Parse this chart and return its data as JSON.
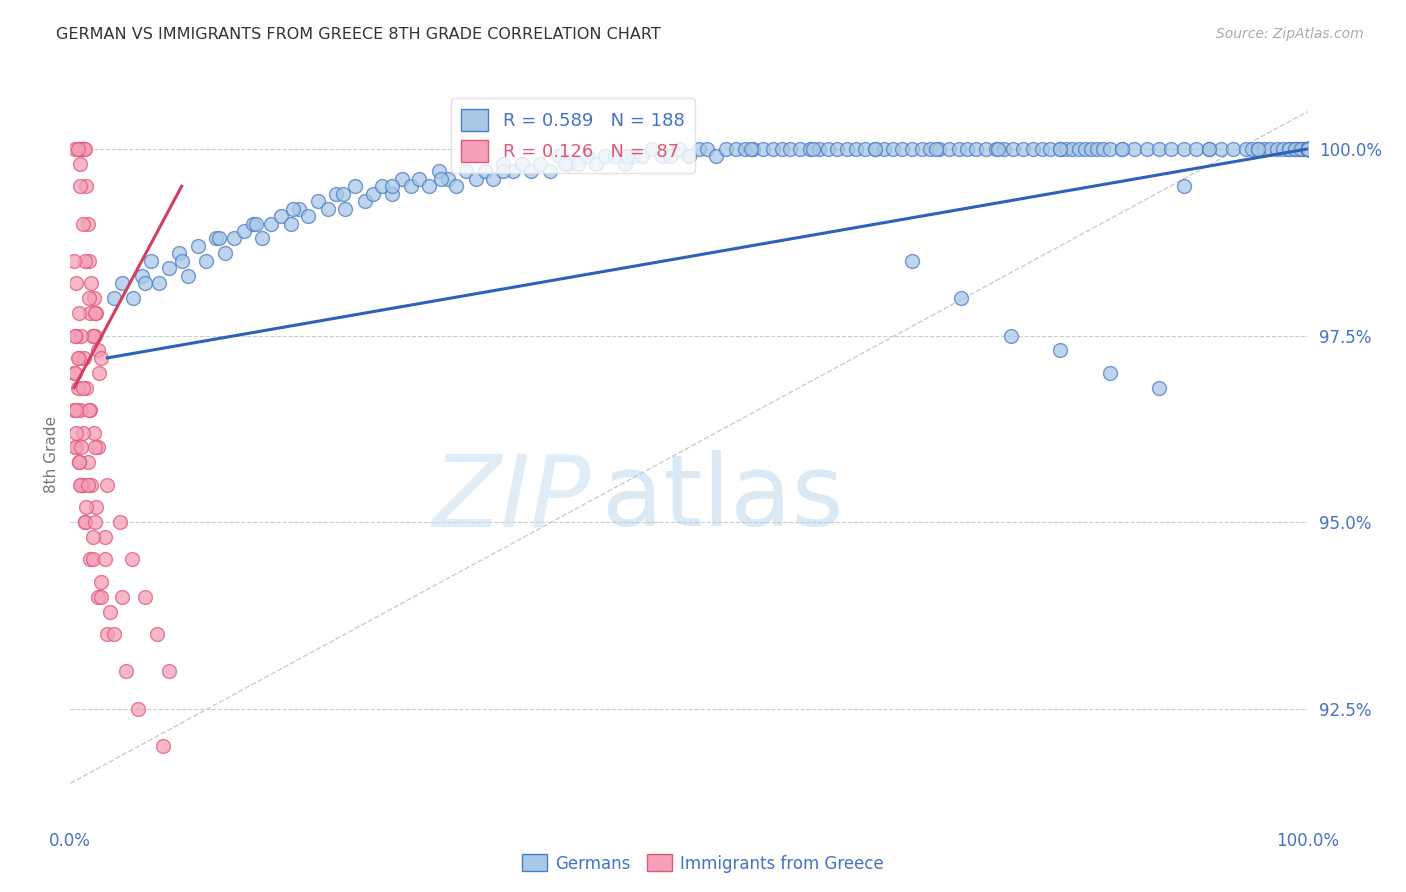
{
  "title": "GERMAN VS IMMIGRANTS FROM GREECE 8TH GRADE CORRELATION CHART",
  "source": "Source: ZipAtlas.com",
  "ylabel": "8th Grade",
  "watermark_zip": "ZIP",
  "watermark_atlas": "atlas",
  "xmin": 0.0,
  "xmax": 100.0,
  "ymin": 91.0,
  "ymax": 100.8,
  "yticks": [
    92.5,
    95.0,
    97.5,
    100.0
  ],
  "xtick_labels": [
    "0.0%",
    "100.0%"
  ],
  "xtick_positions": [
    0.0,
    100.0
  ],
  "blue_R": 0.589,
  "blue_N": 188,
  "pink_R": 0.126,
  "pink_N": 87,
  "blue_color": "#a8c8e8",
  "pink_color": "#f4a0b8",
  "blue_edge_color": "#4a7cc4",
  "pink_edge_color": "#e05878",
  "blue_line_color": "#3060b8",
  "pink_line_color": "#d04060",
  "title_color": "#333333",
  "axis_label_color": "#777777",
  "tick_label_color": "#4472c4",
  "grid_color": "#cccccc",
  "ref_line_color": "#cccccc",
  "background_color": "#ffffff",
  "blue_line_x0": 3.0,
  "blue_line_y0": 97.2,
  "blue_line_x1": 100.0,
  "blue_line_y1": 100.0,
  "pink_line_x0": 0.3,
  "pink_line_y0": 96.8,
  "pink_line_x1": 9.0,
  "pink_line_y1": 99.5,
  "ref_line_x0": 0.0,
  "ref_line_y0": 91.5,
  "ref_line_x1": 100.0,
  "ref_line_y1": 100.5,
  "blue_x": [
    3.5,
    4.2,
    5.1,
    5.8,
    6.5,
    7.2,
    8.0,
    8.8,
    9.5,
    10.3,
    11.0,
    11.8,
    12.5,
    13.2,
    14.0,
    14.8,
    15.5,
    16.2,
    17.0,
    17.8,
    18.5,
    19.2,
    20.0,
    20.8,
    21.5,
    22.2,
    23.0,
    23.8,
    24.5,
    25.2,
    26.0,
    26.8,
    27.5,
    28.2,
    29.0,
    29.8,
    30.5,
    31.2,
    32.0,
    32.8,
    33.5,
    34.2,
    35.0,
    35.8,
    36.5,
    37.2,
    38.0,
    38.8,
    39.5,
    40.2,
    41.0,
    41.8,
    42.5,
    43.2,
    44.0,
    44.8,
    45.5,
    46.2,
    47.0,
    47.8,
    48.5,
    49.2,
    50.0,
    50.8,
    51.5,
    52.2,
    53.0,
    53.8,
    54.5,
    55.2,
    56.0,
    56.8,
    57.5,
    58.2,
    59.0,
    59.8,
    60.5,
    61.2,
    62.0,
    62.8,
    63.5,
    64.2,
    65.0,
    65.8,
    66.5,
    67.2,
    68.0,
    68.8,
    69.5,
    70.2,
    71.0,
    71.8,
    72.5,
    73.2,
    74.0,
    74.8,
    75.5,
    76.2,
    77.0,
    77.8,
    78.5,
    79.2,
    80.0,
    80.5,
    81.0,
    81.5,
    82.0,
    82.5,
    83.0,
    83.5,
    84.0,
    85.0,
    86.0,
    87.0,
    88.0,
    89.0,
    90.0,
    91.0,
    92.0,
    93.0,
    94.0,
    95.0,
    95.5,
    96.0,
    96.5,
    97.0,
    97.5,
    98.0,
    98.5,
    99.0,
    99.2,
    99.4,
    99.6,
    99.8,
    100.0,
    6.0,
    9.0,
    12.0,
    15.0,
    18.0,
    22.0,
    26.0,
    30.0,
    35.0,
    40.0,
    45.0,
    50.0,
    55.0,
    60.0,
    65.0,
    70.0,
    75.0,
    80.0,
    85.0,
    90.0,
    68.0,
    72.0,
    76.0,
    80.0,
    84.0,
    88.0,
    92.0,
    96.0,
    98.5,
    99.0,
    99.5,
    100.0,
    100.0,
    100.0,
    100.0,
    100.0,
    100.0,
    100.0,
    100.0,
    100.0,
    100.0,
    100.0,
    100.0,
    100.0,
    100.0,
    100.0,
    100.0,
    100.0
  ],
  "blue_y": [
    98.0,
    98.2,
    98.0,
    98.3,
    98.5,
    98.2,
    98.4,
    98.6,
    98.3,
    98.7,
    98.5,
    98.8,
    98.6,
    98.8,
    98.9,
    99.0,
    98.8,
    99.0,
    99.1,
    99.0,
    99.2,
    99.1,
    99.3,
    99.2,
    99.4,
    99.2,
    99.5,
    99.3,
    99.4,
    99.5,
    99.4,
    99.6,
    99.5,
    99.6,
    99.5,
    99.7,
    99.6,
    99.5,
    99.7,
    99.6,
    99.7,
    99.6,
    99.8,
    99.7,
    99.8,
    99.7,
    99.8,
    99.7,
    99.9,
    99.8,
    99.8,
    99.9,
    99.8,
    99.9,
    99.9,
    99.8,
    99.9,
    99.9,
    100.0,
    99.9,
    99.9,
    100.0,
    99.9,
    100.0,
    100.0,
    99.9,
    100.0,
    100.0,
    100.0,
    100.0,
    100.0,
    100.0,
    100.0,
    100.0,
    100.0,
    100.0,
    100.0,
    100.0,
    100.0,
    100.0,
    100.0,
    100.0,
    100.0,
    100.0,
    100.0,
    100.0,
    100.0,
    100.0,
    100.0,
    100.0,
    100.0,
    100.0,
    100.0,
    100.0,
    100.0,
    100.0,
    100.0,
    100.0,
    100.0,
    100.0,
    100.0,
    100.0,
    100.0,
    100.0,
    100.0,
    100.0,
    100.0,
    100.0,
    100.0,
    100.0,
    100.0,
    100.0,
    100.0,
    100.0,
    100.0,
    100.0,
    100.0,
    100.0,
    100.0,
    100.0,
    100.0,
    100.0,
    100.0,
    100.0,
    100.0,
    100.0,
    100.0,
    100.0,
    100.0,
    100.0,
    100.0,
    100.0,
    100.0,
    100.0,
    100.0,
    98.2,
    98.5,
    98.8,
    99.0,
    99.2,
    99.4,
    99.5,
    99.6,
    99.7,
    99.8,
    99.9,
    99.9,
    100.0,
    100.0,
    100.0,
    100.0,
    100.0,
    100.0,
    100.0,
    99.5,
    98.5,
    98.0,
    97.5,
    97.3,
    97.0,
    96.8,
    100.0,
    100.0,
    100.0,
    100.0,
    100.0,
    100.0,
    100.0,
    100.0,
    100.0,
    100.0,
    100.0,
    100.0,
    100.0,
    100.0,
    100.0,
    100.0,
    100.0,
    100.0,
    100.0,
    100.0,
    100.0,
    100.0
  ],
  "pink_x": [
    0.3,
    0.5,
    0.6,
    0.7,
    0.8,
    0.9,
    1.0,
    1.1,
    1.2,
    1.3,
    1.4,
    1.5,
    1.6,
    1.7,
    1.8,
    1.9,
    2.0,
    2.1,
    2.2,
    2.3,
    0.4,
    0.6,
    0.8,
    1.0,
    1.2,
    1.5,
    1.8,
    2.0,
    2.5,
    0.3,
    0.5,
    0.7,
    0.9,
    1.1,
    1.3,
    1.6,
    1.9,
    2.2,
    0.4,
    0.6,
    0.8,
    1.0,
    1.4,
    1.7,
    2.1,
    2.8,
    0.5,
    0.7,
    1.0,
    1.3,
    1.8,
    2.5,
    3.2,
    0.4,
    0.6,
    1.0,
    1.5,
    2.0,
    3.0,
    4.0,
    5.0,
    6.0,
    7.0,
    8.0,
    0.3,
    0.5,
    0.7,
    0.9,
    1.2,
    1.6,
    2.2,
    3.0,
    4.5,
    5.5,
    7.5,
    0.4,
    0.8,
    1.2,
    1.8,
    2.5,
    3.5,
    0.5,
    0.9,
    1.4,
    2.0,
    2.8,
    4.2
  ],
  "pink_y": [
    97.0,
    97.5,
    100.0,
    97.2,
    99.8,
    100.0,
    100.0,
    100.0,
    100.0,
    99.5,
    99.0,
    98.5,
    97.8,
    98.2,
    97.5,
    98.0,
    97.5,
    97.8,
    97.3,
    97.0,
    100.0,
    100.0,
    99.5,
    99.0,
    98.5,
    98.0,
    97.5,
    97.8,
    97.2,
    98.5,
    98.2,
    97.8,
    97.5,
    97.2,
    96.8,
    96.5,
    96.2,
    96.0,
    97.0,
    96.8,
    96.5,
    96.2,
    95.8,
    95.5,
    95.2,
    94.8,
    96.0,
    95.8,
    95.5,
    95.2,
    94.8,
    94.2,
    93.8,
    97.5,
    97.2,
    96.8,
    96.5,
    96.0,
    95.5,
    95.0,
    94.5,
    94.0,
    93.5,
    93.0,
    96.5,
    96.2,
    95.8,
    95.5,
    95.0,
    94.5,
    94.0,
    93.5,
    93.0,
    92.5,
    92.0,
    96.0,
    95.5,
    95.0,
    94.5,
    94.0,
    93.5,
    96.5,
    96.0,
    95.5,
    95.0,
    94.5,
    94.0
  ]
}
